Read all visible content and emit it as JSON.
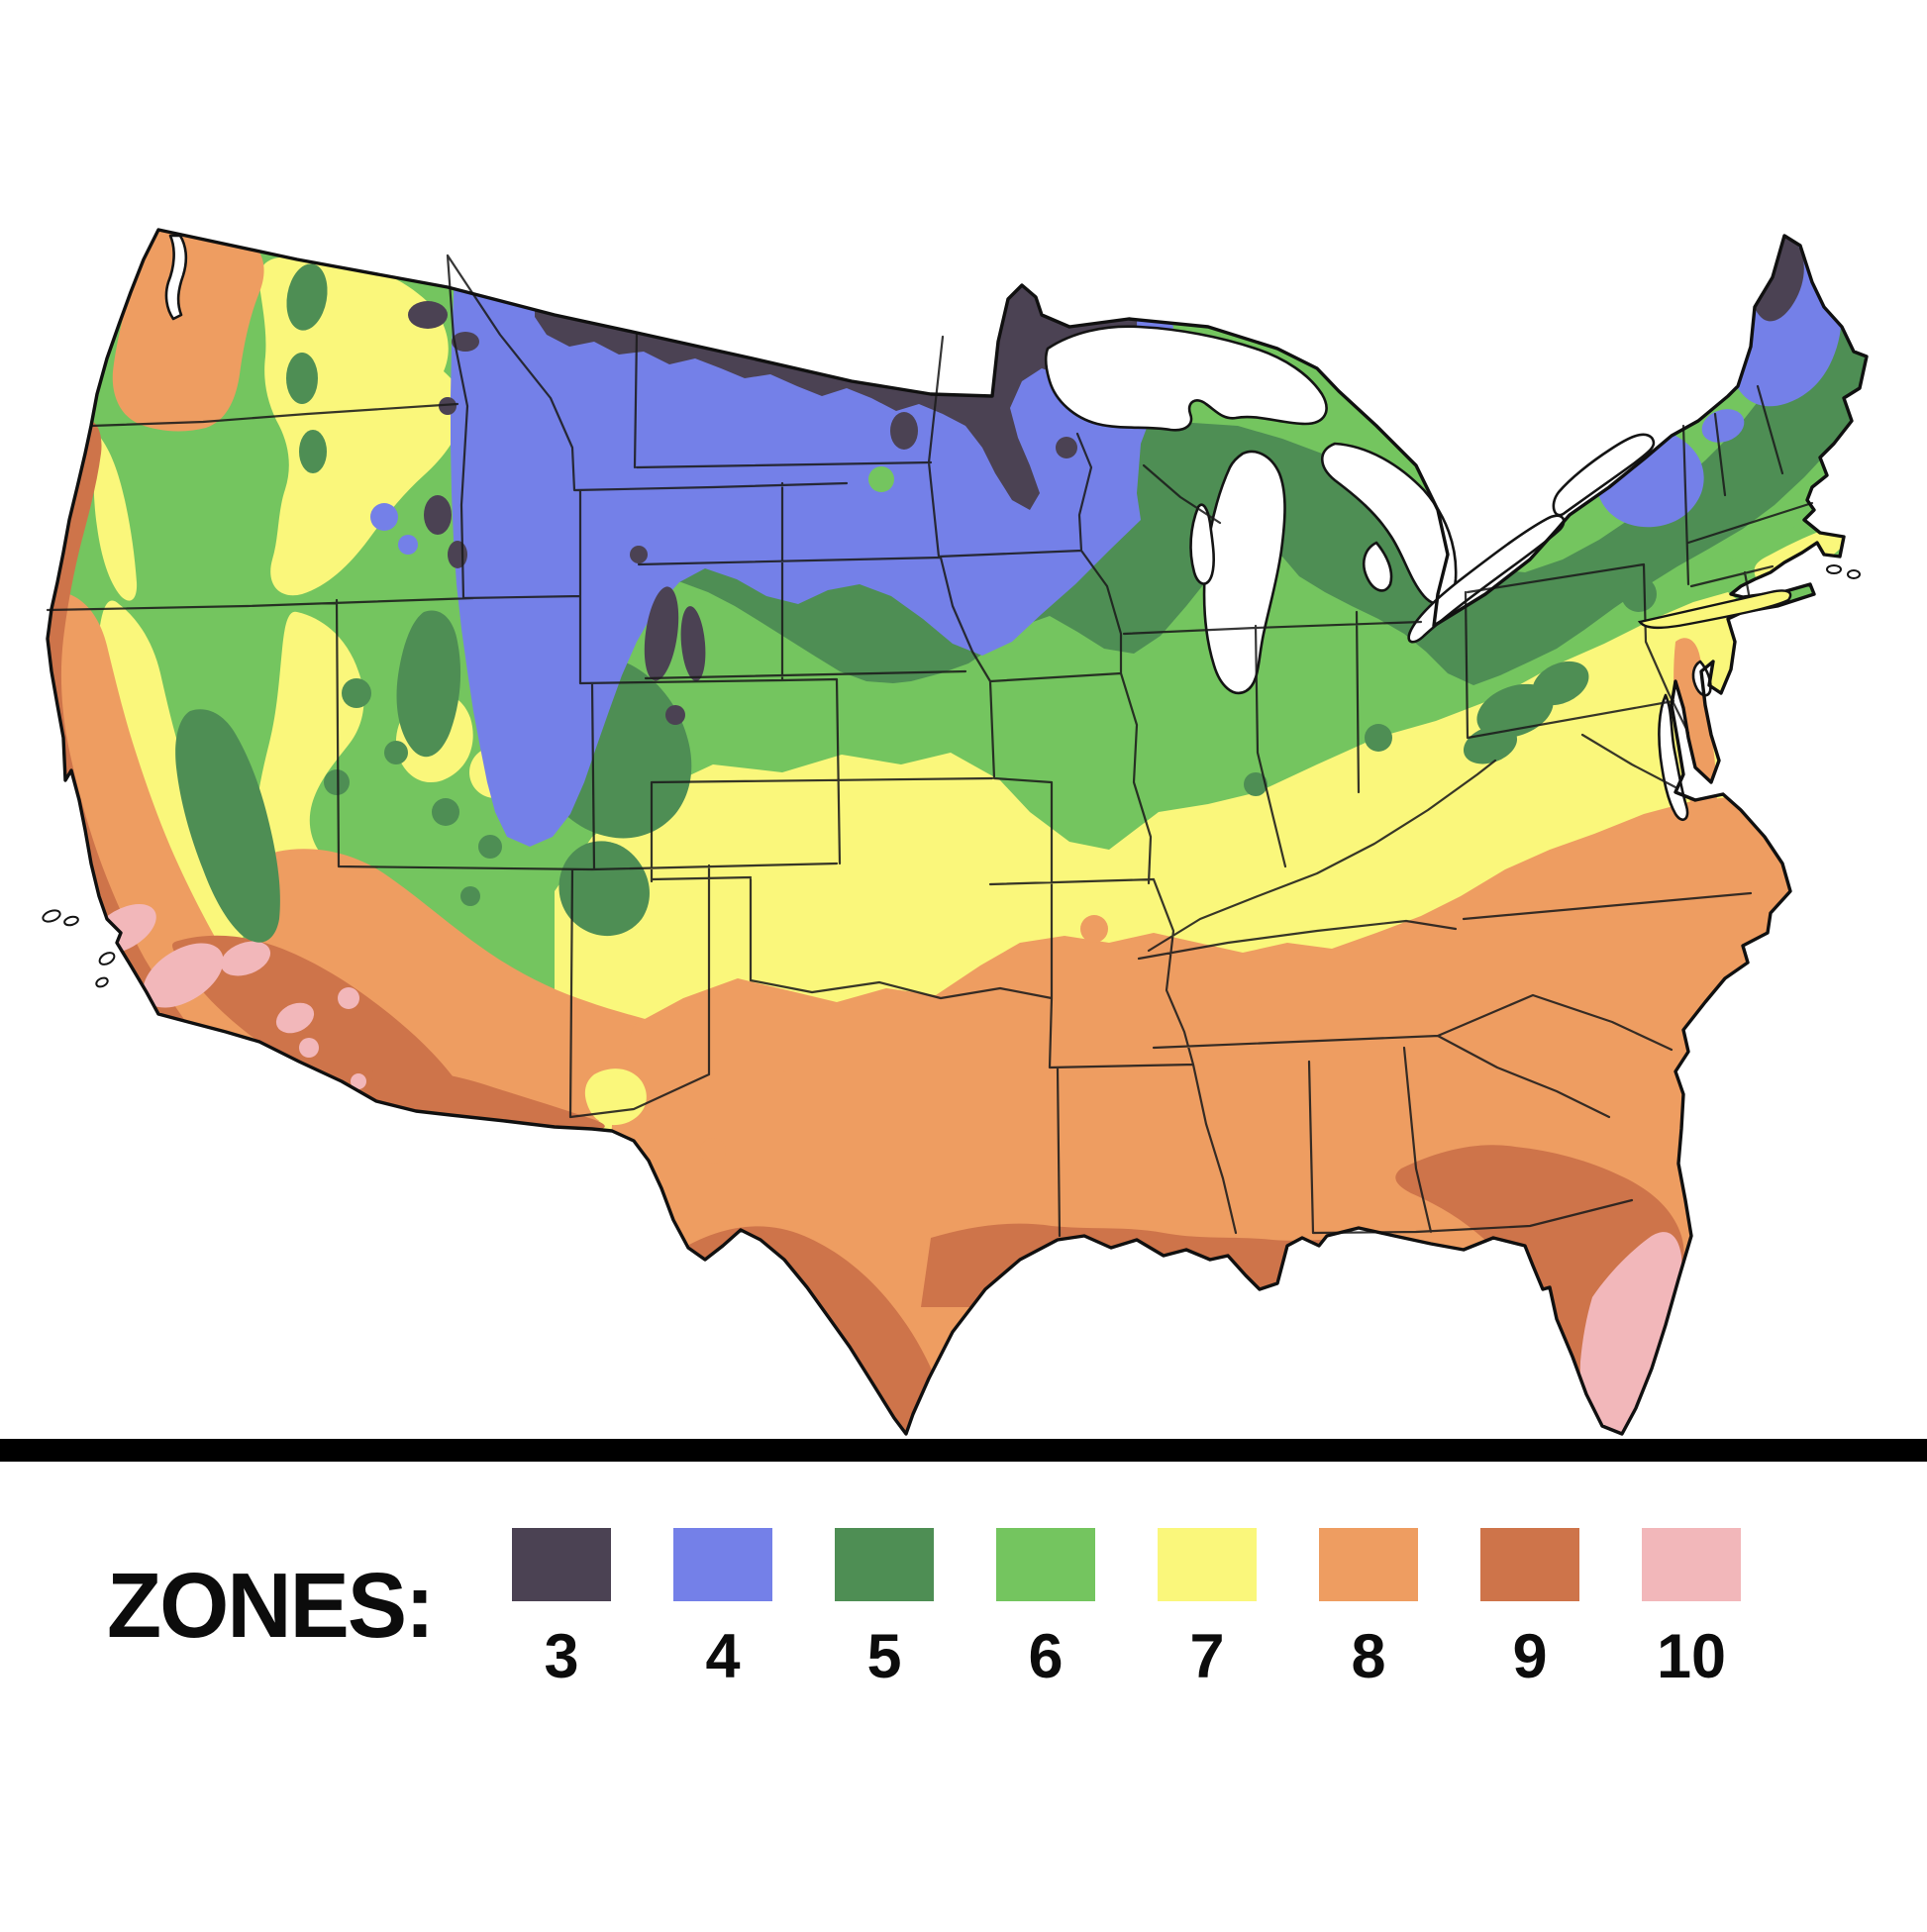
{
  "page": {
    "background": "#ffffff"
  },
  "divider": {
    "color": "#000000"
  },
  "legend": {
    "title": "ZONES:",
    "zones": [
      {
        "number": "3",
        "color": "#4B4253"
      },
      {
        "number": "4",
        "color": "#7480E8"
      },
      {
        "number": "5",
        "color": "#4E8E54"
      },
      {
        "number": "6",
        "color": "#74C55F"
      },
      {
        "number": "7",
        "color": "#FAF77B"
      },
      {
        "number": "8",
        "color": "#EE9D61"
      },
      {
        "number": "9",
        "color": "#CE744A"
      },
      {
        "number": "10",
        "color": "#F2B7BA"
      }
    ]
  },
  "map": {
    "outline_color": "#101010",
    "state_line_color": "#1b1b1b",
    "water_color": "#ffffff"
  }
}
